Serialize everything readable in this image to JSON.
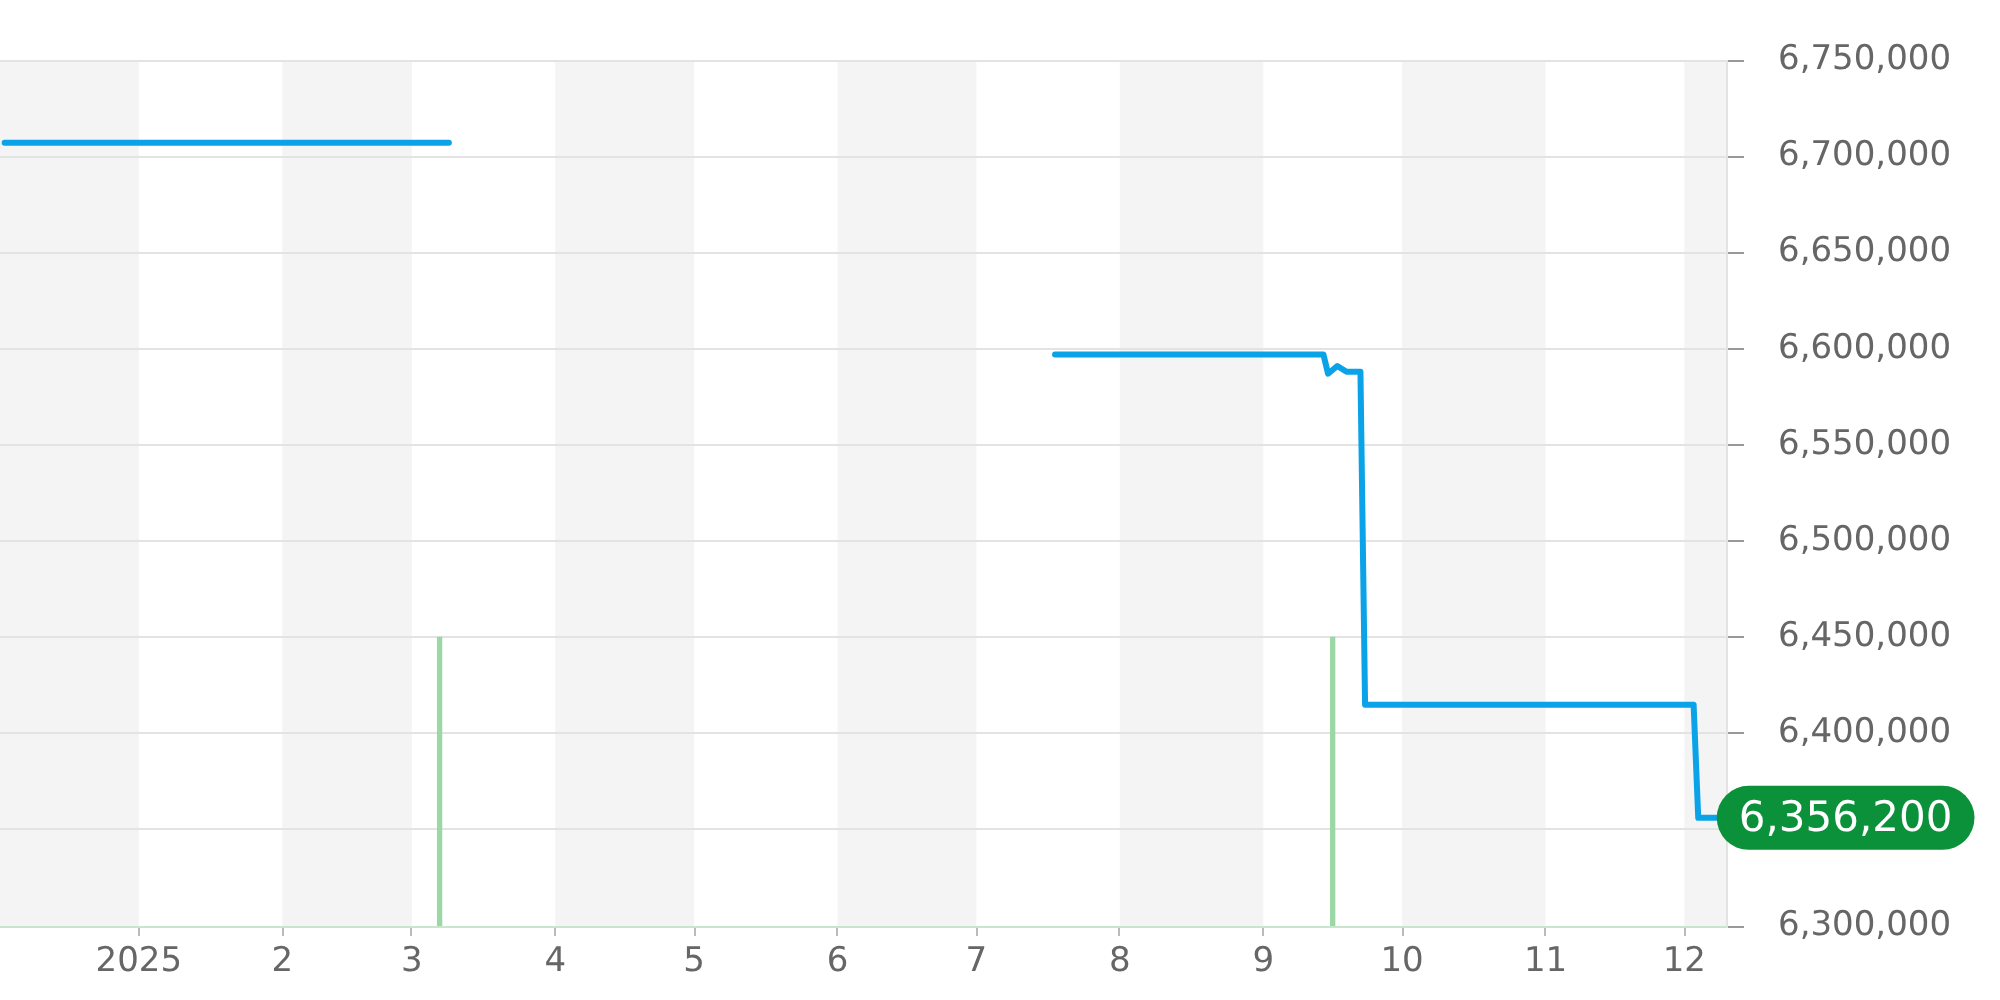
{
  "chart_data": {
    "type": "line",
    "xlim": [
      "2024-12-02",
      "2025-12-10"
    ],
    "xticks": [
      {
        "value": "2025-01-01",
        "label": "2025"
      },
      {
        "value": "2025-02-01",
        "label": "2"
      },
      {
        "value": "2025-03-01",
        "label": "3"
      },
      {
        "value": "2025-04-01",
        "label": "4"
      },
      {
        "value": "2025-05-01",
        "label": "5"
      },
      {
        "value": "2025-06-01",
        "label": "6"
      },
      {
        "value": "2025-07-01",
        "label": "7"
      },
      {
        "value": "2025-08-01",
        "label": "8"
      },
      {
        "value": "2025-09-01",
        "label": "9"
      },
      {
        "value": "2025-10-01",
        "label": "10"
      },
      {
        "value": "2025-11-01",
        "label": "11"
      },
      {
        "value": "2025-12-01",
        "label": "12"
      }
    ],
    "ylim": [
      6300000,
      6750000
    ],
    "yticks": [
      {
        "value": 6300000,
        "label": "6,300,000"
      },
      {
        "value": 6350000,
        "label": null
      },
      {
        "value": 6400000,
        "label": "6,400,000"
      },
      {
        "value": 6450000,
        "label": "6,450,000"
      },
      {
        "value": 6500000,
        "label": "6,500,000"
      },
      {
        "value": 6550000,
        "label": "6,550,000"
      },
      {
        "value": 6600000,
        "label": "6,600,000"
      },
      {
        "value": 6650000,
        "label": "6,650,000"
      },
      {
        "value": 6700000,
        "label": "6,700,000"
      },
      {
        "value": 6750000,
        "label": "6,750,000"
      }
    ],
    "grid": "y",
    "marker": "none",
    "series": [
      {
        "color": "#0aa3e8",
        "x": [
          "2024-12-03",
          "2025-03-09",
          "2025-05-15",
          "2025-07-18",
          "2025-09-14",
          "2025-09-15",
          "2025-09-17",
          "2025-09-19",
          "2025-09-22",
          "2025-09-23",
          "2025-12-03",
          "2025-12-04",
          "2025-12-08"
        ],
        "values": [
          6707000,
          6707000,
          null,
          6597000,
          6597000,
          6587000,
          6591000,
          6588000,
          6588000,
          6415000,
          6415000,
          6356200,
          6356200
        ]
      },
      {
        "type": "bar",
        "color": "#9cd8a6",
        "x": [
          "2025-03-07",
          "2025-09-16"
        ],
        "values": [
          6450000,
          6450000
        ]
      }
    ],
    "bands": [
      {
        "axis": "x",
        "from": "2024-12-02",
        "to": "2025-01-01",
        "color": "#f4f4f4"
      },
      {
        "axis": "x",
        "from": "2025-02-01",
        "to": "2025-03-01",
        "color": "#f4f4f4"
      },
      {
        "axis": "x",
        "from": "2025-04-01",
        "to": "2025-05-01",
        "color": "#f4f4f4"
      },
      {
        "axis": "x",
        "from": "2025-06-01",
        "to": "2025-07-01",
        "color": "#f4f4f4"
      },
      {
        "axis": "x",
        "from": "2025-08-01",
        "to": "2025-09-01",
        "color": "#f4f4f4"
      },
      {
        "axis": "x",
        "from": "2025-10-01",
        "to": "2025-11-01",
        "color": "#f4f4f4"
      },
      {
        "axis": "x",
        "from": "2025-12-01",
        "to": "2025-12-10",
        "color": "#f4f4f4"
      }
    ],
    "annotations": [
      {
        "text": "6,356,200",
        "x": "2025-12-08",
        "y": 6356200
      }
    ]
  }
}
